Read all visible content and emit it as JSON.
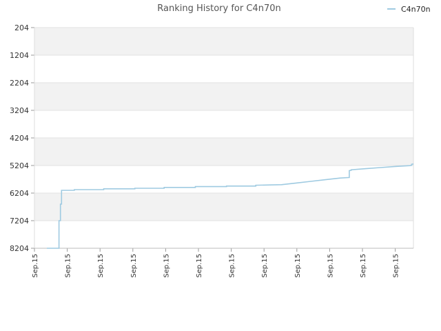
{
  "chart_data": {
    "type": "line",
    "title": "Ranking History for C4n70n",
    "xlabel": "",
    "ylabel": "",
    "y_inverted": true,
    "ylim": [
      8204,
      204
    ],
    "yticks": [
      "204",
      "1204",
      "2204",
      "3204",
      "4204",
      "5204",
      "6204",
      "7204",
      "8204"
    ],
    "xticks": [
      "Sep.15",
      "Sep.15",
      "Sep.15",
      "Sep.15",
      "Sep.15",
      "Sep.15",
      "Sep.15",
      "Sep.15",
      "Sep.15",
      "Sep.15",
      "Sep.15",
      "Sep.15"
    ],
    "legend_position": "top-right",
    "grid": true,
    "band_colors": [
      "#f2f2f2",
      "#ffffff"
    ],
    "series": [
      {
        "name": "C4n70n",
        "color": "#9ecae1",
        "x": [
          0.0,
          0.033,
          0.033,
          0.037,
          0.037,
          0.04,
          0.04,
          0.075,
          0.075,
          0.155,
          0.155,
          0.24,
          0.24,
          0.32,
          0.32,
          0.405,
          0.405,
          0.49,
          0.49,
          0.57,
          0.57,
          0.64,
          0.68,
          0.72,
          0.76,
          0.8,
          0.825,
          0.825,
          0.83,
          0.83,
          0.87,
          0.91,
          0.95,
          0.99,
          0.995,
          0.995,
          1.0
        ],
        "y": [
          8204,
          8204,
          7204,
          7204,
          6604,
          6604,
          6104,
          6104,
          6080,
          6080,
          6050,
          6050,
          6030,
          6030,
          6000,
          6000,
          5970,
          5970,
          5950,
          5950,
          5920,
          5900,
          5840,
          5780,
          5720,
          5660,
          5640,
          5390,
          5380,
          5360,
          5320,
          5280,
          5240,
          5210,
          5200,
          5160,
          5150
        ]
      }
    ]
  }
}
